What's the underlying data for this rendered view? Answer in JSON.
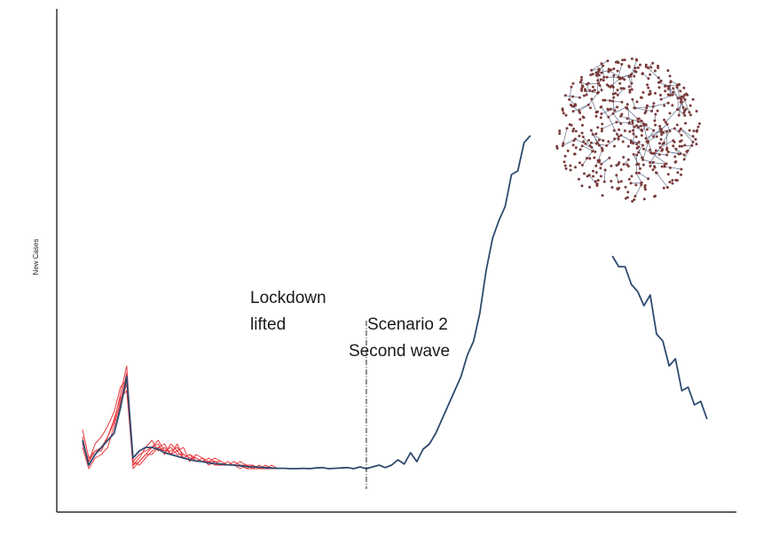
{
  "chart_data": {
    "type": "line",
    "ylabel": "New Cases",
    "xlabel": "",
    "title": "",
    "grid": false,
    "legend": "none",
    "annotations": {
      "lockdown": [
        "Lockdown",
        "lifted"
      ],
      "scenario": [
        "Scenario 2",
        "Second wave"
      ]
    },
    "lockdown_x": 45,
    "xlim": [
      -5,
      100
    ],
    "ylim": [
      0,
      100
    ],
    "main_series": {
      "color": "#2e4a6f",
      "segments": [
        {
          "x": [
            0,
            1,
            2,
            3,
            4,
            5,
            6,
            7,
            8,
            9,
            10,
            11,
            12,
            13,
            14,
            15,
            16,
            17,
            18,
            19,
            20,
            21,
            22,
            23,
            24,
            25,
            26,
            27,
            28,
            29,
            30,
            31,
            32,
            33,
            34,
            35,
            36,
            37,
            38,
            39,
            40,
            41,
            42,
            43,
            44,
            45,
            46,
            47,
            48,
            49,
            50,
            51,
            52,
            53,
            54,
            55,
            56,
            57,
            58,
            59,
            60,
            61,
            62,
            63,
            64,
            65,
            66,
            67,
            68,
            69,
            70,
            71
          ],
          "y": [
            14,
            7,
            10,
            12,
            14,
            16,
            23,
            32,
            9,
            11,
            12,
            12,
            11.5,
            10.5,
            10,
            9.5,
            9,
            8.5,
            8.2,
            8,
            7.6,
            7.4,
            7.3,
            7.1,
            7,
            6.8,
            6.6,
            6.5,
            6.4,
            6.3,
            6.2,
            6.1,
            6.1,
            6,
            6,
            6.1,
            6,
            6.2,
            6.3,
            6,
            6.1,
            6.2,
            6.3,
            6,
            6.5,
            6,
            6.5,
            7,
            6.3,
            7,
            8.5,
            7.3,
            10.5,
            8,
            11.5,
            13,
            16,
            20,
            24,
            28,
            32,
            38,
            42,
            50,
            62,
            71,
            76,
            80,
            89,
            90,
            98,
            100
          ]
        },
        {
          "x": [
            84,
            85,
            86,
            87,
            88,
            89,
            90,
            91,
            92,
            93,
            94,
            95,
            96,
            97,
            98,
            99
          ],
          "y": [
            66,
            63,
            63,
            58,
            56,
            52,
            55,
            44,
            42,
            35,
            37,
            28,
            29,
            24,
            25,
            20
          ]
        }
      ]
    },
    "red_series": {
      "color": "#e8383e",
      "x": [
        0,
        1,
        2,
        3,
        4,
        5,
        6,
        7,
        8,
        9,
        10,
        11,
        12,
        13,
        14,
        15,
        16,
        17,
        18,
        19,
        20,
        21,
        22,
        23,
        24,
        25,
        26,
        27,
        28,
        29,
        30,
        31,
        32,
        33,
        34,
        35
      ],
      "series": [
        {
          "values": [
            17,
            9,
            11,
            12,
            15,
            19,
            27,
            35,
            8,
            10,
            11,
            12,
            13,
            10,
            13,
            11,
            12,
            8,
            10,
            9,
            8,
            9,
            8,
            7,
            7,
            8,
            7,
            7,
            6,
            7,
            6,
            6,
            6,
            6,
            6,
            6
          ]
        },
        {
          "values": [
            14,
            8,
            13,
            15,
            18,
            22,
            29,
            31,
            7,
            9,
            12,
            14,
            11,
            12,
            10,
            13,
            9,
            10,
            9,
            8,
            9,
            8,
            8,
            7,
            8,
            7,
            7,
            6,
            7,
            6,
            7,
            6,
            6,
            6,
            6,
            6
          ]
        },
        {
          "values": [
            12,
            6,
            9,
            10,
            12,
            18,
            25,
            33,
            6,
            8,
            10,
            12,
            14,
            11,
            12,
            10,
            10,
            9,
            8,
            9,
            7,
            8,
            7,
            7,
            7,
            6,
            7,
            6,
            6,
            6,
            6,
            6,
            6,
            6,
            6,
            6
          ]
        },
        {
          "values": [
            15,
            7,
            10,
            12,
            14,
            16,
            24,
            30,
            8,
            7,
            9,
            11,
            12,
            13,
            10,
            11,
            9,
            10,
            8,
            8,
            8,
            7,
            7,
            8,
            7,
            7,
            6,
            7,
            6,
            6,
            6,
            6,
            6,
            6,
            6,
            6
          ]
        },
        {
          "values": [
            13,
            8,
            11,
            11,
            15,
            20,
            26,
            28,
            7,
            8,
            10,
            10,
            12,
            11,
            11,
            12,
            10,
            9,
            9,
            8,
            8,
            8,
            7,
            7,
            7,
            7,
            6,
            6,
            6,
            7,
            6,
            6,
            6,
            6,
            6,
            6
          ]
        }
      ]
    },
    "network_inset": {
      "kind": "network-graph",
      "node_color": "#7a3b3b",
      "edge_color": "#4a5a78"
    }
  }
}
